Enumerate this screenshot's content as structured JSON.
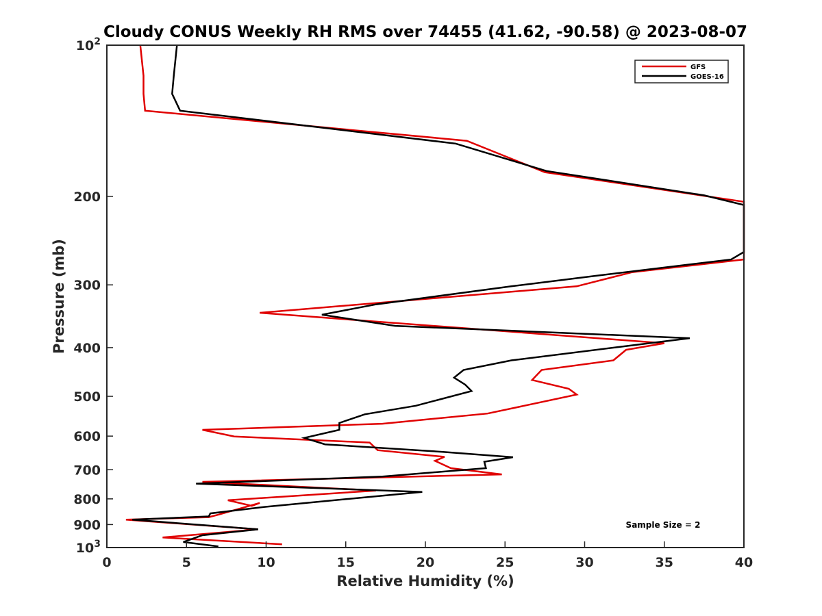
{
  "chart_data": {
    "type": "line",
    "title": "Cloudy CONUS Weekly RH RMS over 74455 (41.62, -90.58) @ 2023-08-07",
    "xlabel": "Relative Humidity (%)",
    "ylabel": "Pressure (mb)",
    "xlim": [
      0,
      40
    ],
    "ylim": [
      100,
      1000
    ],
    "y_scale": "log",
    "y_reversed": true,
    "grid": false,
    "legend_position": "top-right",
    "x_ticks": [
      "0",
      "5",
      "10",
      "15",
      "20",
      "25",
      "30",
      "35",
      "40"
    ],
    "y_ticks": [
      {
        "value": 100,
        "base": "10",
        "exp": "2"
      },
      {
        "value": 200,
        "label": "200"
      },
      {
        "value": 300,
        "label": "300"
      },
      {
        "value": 400,
        "label": "400"
      },
      {
        "value": 500,
        "label": "500"
      },
      {
        "value": 600,
        "label": "600"
      },
      {
        "value": 700,
        "label": "700"
      },
      {
        "value": 800,
        "label": "800"
      },
      {
        "value": 900,
        "label": "900"
      },
      {
        "value": 1000,
        "base": "10",
        "exp": "3"
      }
    ],
    "annotation": "Sample Size = 2",
    "series": [
      {
        "name": "GFS",
        "color": "#e00000",
        "points": [
          [
            2.1,
            100
          ],
          [
            2.3,
            115
          ],
          [
            2.3,
            125
          ],
          [
            2.4,
            135
          ],
          [
            22.6,
            155
          ],
          [
            27.5,
            179
          ],
          [
            40.0,
            205
          ],
          [
            40.0,
            267
          ],
          [
            33.0,
            283
          ],
          [
            29.5,
            302
          ],
          [
            9.6,
            341
          ],
          [
            35.0,
            392
          ],
          [
            32.6,
            404
          ],
          [
            31.8,
            424
          ],
          [
            27.3,
            443
          ],
          [
            26.7,
            464
          ],
          [
            29.0,
            483
          ],
          [
            29.5,
            496
          ],
          [
            23.9,
            541
          ],
          [
            17.3,
            567
          ],
          [
            6.0,
            583
          ],
          [
            8.0,
            601
          ],
          [
            16.5,
            618
          ],
          [
            17.0,
            640
          ],
          [
            21.2,
            660
          ],
          [
            20.6,
            672
          ],
          [
            21.6,
            695
          ],
          [
            24.8,
            715
          ],
          [
            6.0,
            740
          ],
          [
            16.9,
            770
          ],
          [
            7.6,
            805
          ],
          [
            9.1,
            826
          ],
          [
            9.6,
            815
          ],
          [
            7.0,
            860
          ],
          [
            6.4,
            870
          ],
          [
            1.2,
            880
          ],
          [
            9.5,
            920
          ],
          [
            3.5,
            955
          ],
          [
            11.0,
            985
          ]
        ]
      },
      {
        "name": "GOES-16",
        "color": "#000000",
        "points": [
          [
            4.4,
            100
          ],
          [
            4.2,
            115
          ],
          [
            4.1,
            125
          ],
          [
            4.6,
            135
          ],
          [
            21.9,
            157
          ],
          [
            27.6,
            178
          ],
          [
            37.5,
            199
          ],
          [
            40.0,
            208
          ],
          [
            40.0,
            258
          ],
          [
            39.2,
            267
          ],
          [
            30.6,
            288
          ],
          [
            25.4,
            302
          ],
          [
            16.9,
            328
          ],
          [
            13.5,
            344
          ],
          [
            18.1,
            362
          ],
          [
            36.6,
            383
          ],
          [
            25.4,
            424
          ],
          [
            22.4,
            443
          ],
          [
            21.8,
            459
          ],
          [
            22.5,
            474
          ],
          [
            22.9,
            488
          ],
          [
            19.4,
            522
          ],
          [
            16.2,
            543
          ],
          [
            14.6,
            565
          ],
          [
            14.6,
            583
          ],
          [
            12.4,
            605
          ],
          [
            13.7,
            623
          ],
          [
            21.1,
            645
          ],
          [
            25.5,
            661
          ],
          [
            23.7,
            675
          ],
          [
            23.8,
            695
          ],
          [
            17.3,
            722
          ],
          [
            5.6,
            746
          ],
          [
            19.8,
            775
          ],
          [
            9.9,
            830
          ],
          [
            6.5,
            855
          ],
          [
            6.4,
            867
          ],
          [
            1.6,
            880
          ],
          [
            9.5,
            920
          ],
          [
            6.0,
            945
          ],
          [
            4.8,
            975
          ],
          [
            7.0,
            995
          ]
        ]
      }
    ]
  }
}
